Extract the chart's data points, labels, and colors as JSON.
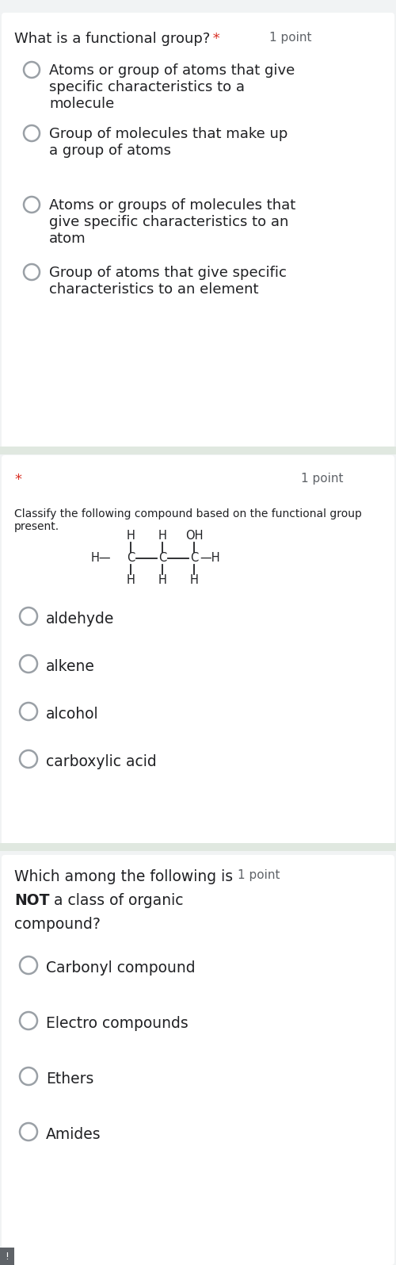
{
  "bg_color": "#f1f3f4",
  "card_color": "#ffffff",
  "separator_color": "#e0e8e0",
  "text_color": "#202124",
  "gray_text": "#5f6368",
  "red_star": "#d93025",
  "section1": {
    "question": "What is a functional group?",
    "points": "1 point",
    "opt_lines": [
      [
        "Atoms or group of atoms that give",
        "specific characteristics to a",
        "molecule"
      ],
      [
        "Group of molecules that make up",
        "a group of atoms"
      ],
      [
        "Atoms or groups of molecules that",
        "give specific characteristics to an",
        "atom"
      ],
      [
        "Group of atoms that give specific",
        "characteristics to an element"
      ]
    ]
  },
  "section2": {
    "points": "1 point",
    "instruction1": "Classify the following compound based on the functional group",
    "instruction2": "present.",
    "options": [
      "aldehyde",
      "alkene",
      "alcohol",
      "carboxylic acid"
    ]
  },
  "section3": {
    "q1": "Which among the following is",
    "q2_bold": "NOT",
    "q2_rest": " a class of organic",
    "q3": "compound?",
    "points": "1 point",
    "options": [
      "Carbonyl compound",
      "Electro compounds",
      "Ethers",
      "Amides"
    ]
  }
}
